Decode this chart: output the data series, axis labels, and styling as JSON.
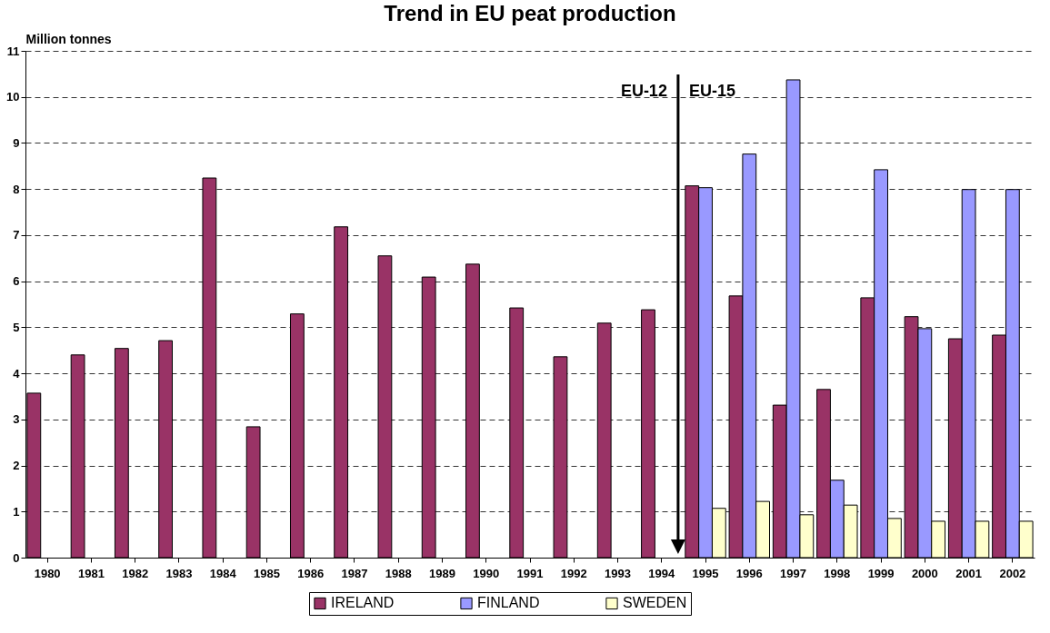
{
  "chart_data": {
    "type": "bar",
    "title": "Trend in EU peat production",
    "ylabel": "Million tonnes",
    "categories": [
      "1980",
      "1981",
      "1982",
      "1983",
      "1984",
      "1985",
      "1986",
      "1987",
      "1988",
      "1989",
      "1990",
      "1991",
      "1992",
      "1993",
      "1994",
      "1995",
      "1996",
      "1997",
      "1998",
      "1999",
      "2000",
      "2001",
      "2002"
    ],
    "series": [
      {
        "name": "IRELAND",
        "color": "#993366",
        "values": [
          3.57,
          4.4,
          4.54,
          4.71,
          8.24,
          2.84,
          5.29,
          7.18,
          6.55,
          6.09,
          6.37,
          5.42,
          4.36,
          5.09,
          5.38,
          8.07,
          5.68,
          3.31,
          3.65,
          5.64,
          5.23,
          4.75,
          4.83
        ]
      },
      {
        "name": "FINLAND",
        "color": "#9999ff",
        "values": [
          null,
          null,
          null,
          null,
          null,
          null,
          null,
          null,
          null,
          null,
          null,
          null,
          null,
          null,
          null,
          8.03,
          8.76,
          10.37,
          1.68,
          8.42,
          4.97,
          7.99,
          7.99
        ]
      },
      {
        "name": "SWEDEN",
        "color": "#ffffcc",
        "values": [
          null,
          null,
          null,
          null,
          null,
          null,
          null,
          null,
          null,
          null,
          null,
          null,
          null,
          null,
          null,
          1.07,
          1.22,
          0.93,
          1.14,
          0.85,
          0.79,
          0.79,
          0.79
        ]
      }
    ],
    "ylim": [
      0,
      11
    ],
    "yticks": [
      0,
      1,
      2,
      3,
      4,
      5,
      6,
      7,
      8,
      9,
      10,
      11
    ],
    "grid": "y",
    "legend": "bottom",
    "annotations": [
      "EU-12",
      "EU-15"
    ]
  }
}
